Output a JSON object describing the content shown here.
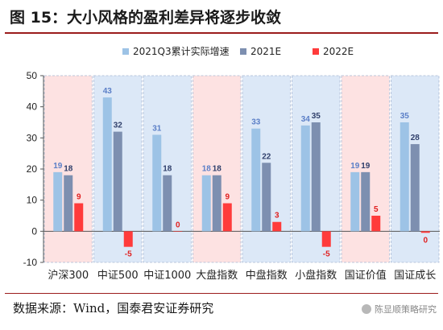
{
  "title": "图 15：大小风格的盈利差异将逐步收敛",
  "source": "数据来源：Wind，国泰君安证券研究",
  "watermark": "陈显顺策略研究",
  "watermark_icon": "wechat-icon",
  "chart_data": {
    "type": "bar",
    "title": "",
    "xlabel": "",
    "ylabel": "",
    "categories": [
      "沪深300",
      "中证500",
      "中证1000",
      "大盘指数",
      "中盘指数",
      "小盘指数",
      "国证价值",
      "国证成长"
    ],
    "series": [
      {
        "name": "2021Q3累计实际增速",
        "values": [
          19,
          43,
          31,
          18,
          33,
          34,
          19,
          35
        ],
        "color": "#9dc3e6",
        "label_color": "#5b7fc7"
      },
      {
        "name": "2021E",
        "values": [
          18,
          32,
          18,
          18,
          22,
          35,
          19,
          28
        ],
        "color": "#7d8fb0",
        "label_color": "#2f3f6b"
      },
      {
        "name": "2022E",
        "values": [
          9,
          -5,
          0,
          9,
          3,
          -5,
          5,
          -0.5
        ],
        "value_labels": [
          "9",
          "-5",
          "0",
          "9",
          "3",
          "-5",
          "5",
          "0"
        ],
        "color": "#ff3b3b",
        "label_color": "#e02020"
      }
    ],
    "ylim": [
      -10,
      50
    ],
    "yticks": [
      -10,
      0,
      10,
      20,
      30,
      40,
      50
    ],
    "category_backgrounds": [
      "#fde2e2",
      "#dce8f7",
      "#dce8f7",
      "#fde2e2",
      "#dce8f7",
      "#dce8f7",
      "#fde2e2",
      "#dce8f7"
    ],
    "legend_position": "top",
    "grid": false
  }
}
